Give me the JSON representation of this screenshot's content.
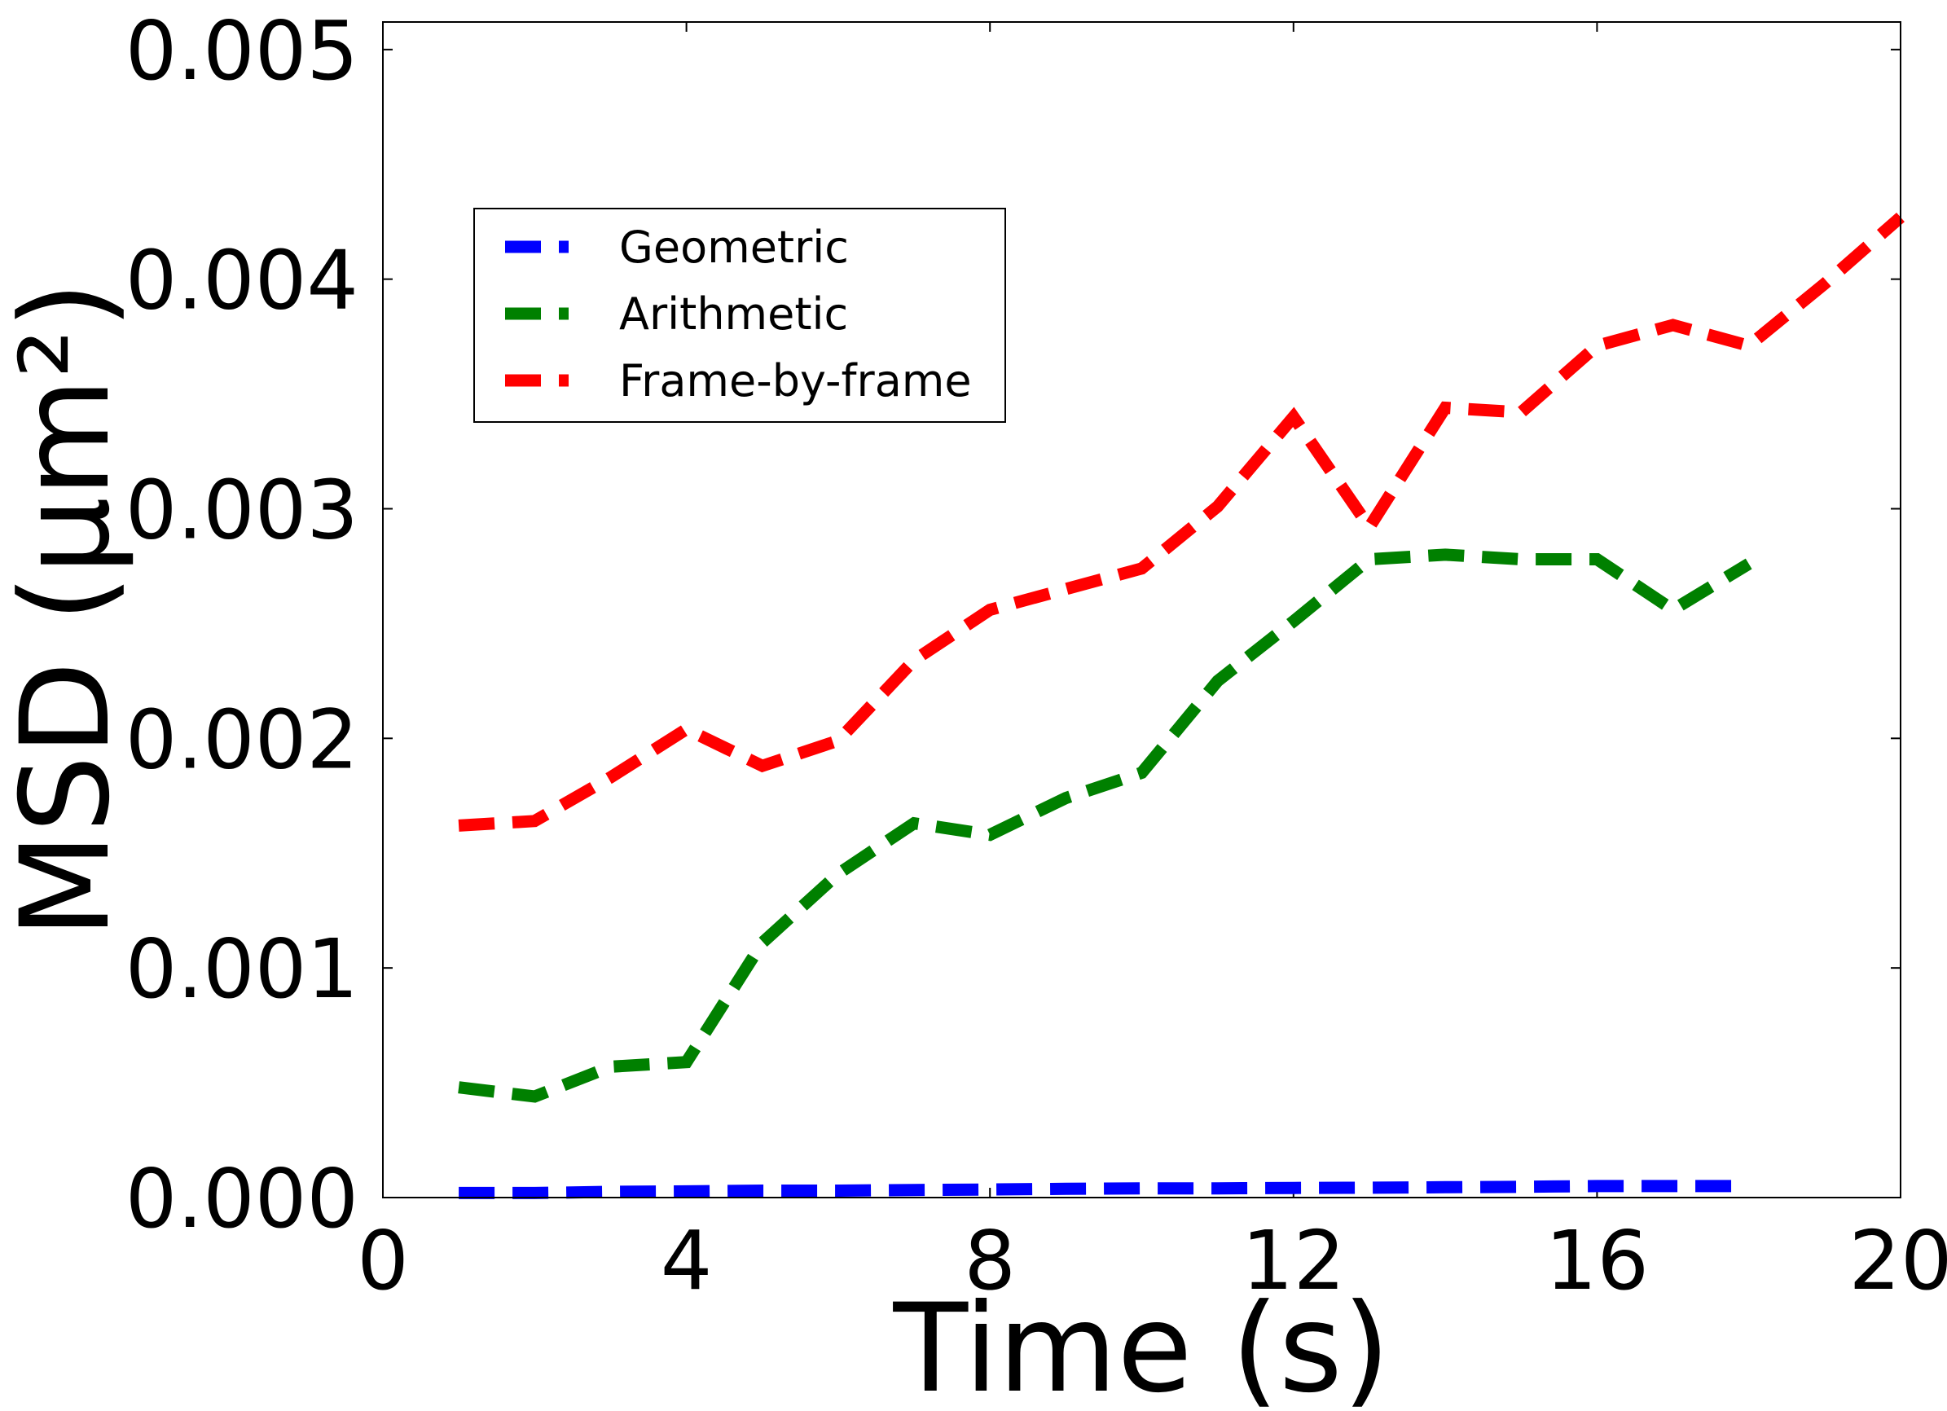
{
  "chart_data": {
    "type": "line",
    "xlabel": "Time (s)",
    "ylabel": "MSD (μm²)",
    "xlim": [
      0,
      20
    ],
    "ylim": [
      0,
      0.00512
    ],
    "xticks": [
      "0",
      "4",
      "8",
      "12",
      "16",
      "20"
    ],
    "yticks": [
      "0.000",
      "0.001",
      "0.002",
      "0.003",
      "0.004",
      "0.005"
    ],
    "grid": false,
    "legend_position": "upper-left",
    "series": [
      {
        "name": "Geometric",
        "color": "#0000ff",
        "x": [
          1,
          2,
          3,
          4,
          5,
          6,
          7,
          8,
          9,
          10,
          11,
          12,
          13,
          14,
          15,
          16,
          17,
          18
        ],
        "y": [
          2e-05,
          2e-05,
          2.5e-05,
          2.7e-05,
          3e-05,
          3e-05,
          3.3e-05,
          3.5e-05,
          3.8e-05,
          4e-05,
          4e-05,
          4.2e-05,
          4.3e-05,
          4.5e-05,
          4.7e-05,
          5e-05,
          5e-05,
          5e-05
        ]
      },
      {
        "name": "Arithmetic",
        "color": "#008000",
        "x": [
          1,
          2,
          3,
          4,
          5,
          6,
          7,
          8,
          9,
          10,
          11,
          12,
          13,
          14,
          15,
          16,
          17,
          18
        ],
        "y": [
          0.00048,
          0.00044,
          0.00057,
          0.00059,
          0.00111,
          0.00141,
          0.00163,
          0.00158,
          0.00174,
          0.00185,
          0.00225,
          0.00251,
          0.00278,
          0.0028,
          0.00278,
          0.00278,
          0.00256,
          0.00276
        ]
      },
      {
        "name": "Frame-by-frame",
        "color": "#ff0000",
        "x": [
          1,
          2,
          3,
          4,
          5,
          6,
          7,
          8,
          9,
          10,
          11,
          12,
          13,
          14,
          15,
          16,
          17,
          18,
          19,
          20
        ],
        "y": [
          0.00162,
          0.00164,
          0.00183,
          0.00204,
          0.00188,
          0.00199,
          0.00234,
          0.00256,
          0.00265,
          0.00274,
          0.00301,
          0.0034,
          0.00292,
          0.00344,
          0.00342,
          0.00371,
          0.0038,
          0.00371,
          0.00398,
          0.00427
        ]
      }
    ]
  }
}
